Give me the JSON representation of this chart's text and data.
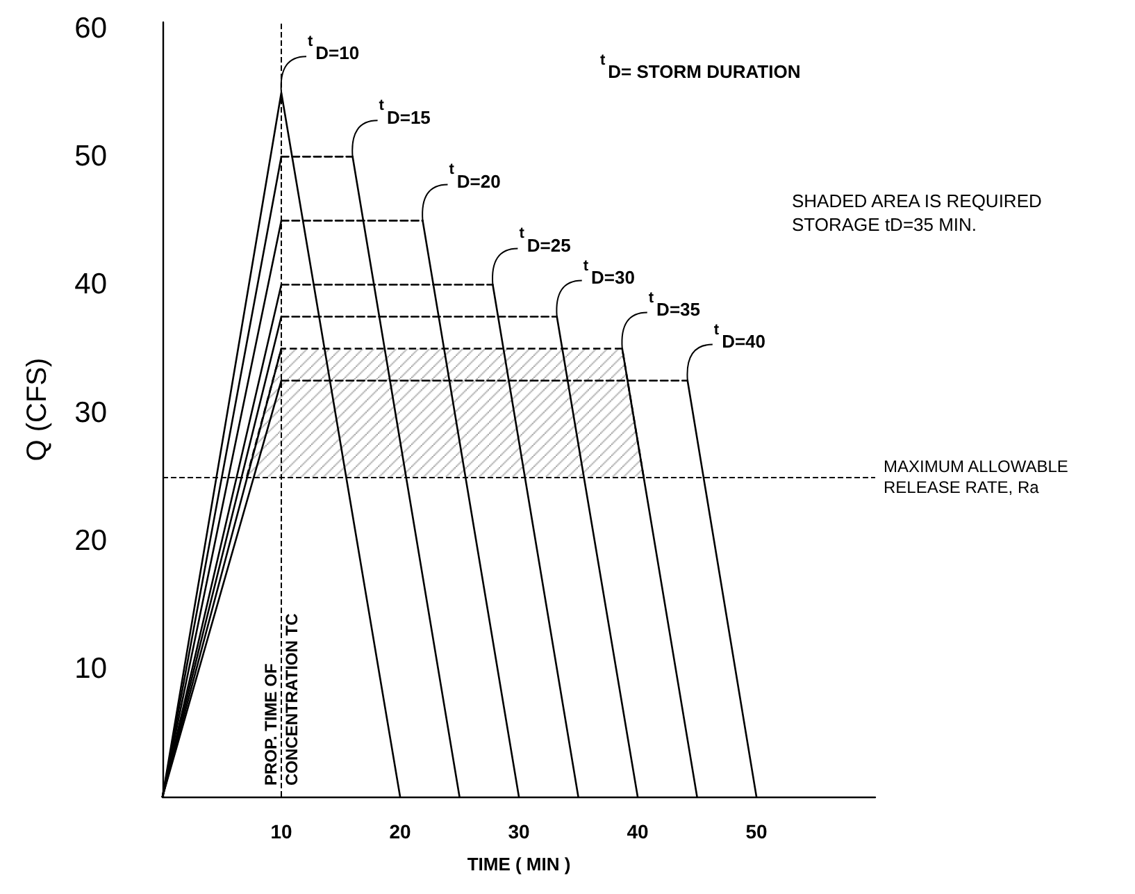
{
  "chart_data": {
    "type": "line",
    "xlabel": "TIME ( MIN )",
    "ylabel": "Q (CFS)",
    "xlim": [
      0,
      60
    ],
    "ylim": [
      0,
      60.5
    ],
    "xticks": [
      10,
      20,
      30,
      40,
      50
    ],
    "yticks": [
      10,
      20,
      30,
      40,
      50,
      60
    ],
    "grid": false,
    "marker": "none",
    "line_style": "solid",
    "series": [
      {
        "color": "#000000",
        "x": [
          0,
          10,
          20
        ],
        "values": [
          0,
          55,
          0
        ]
      },
      {
        "color": "#000000",
        "x": [
          0,
          10
        ],
        "values": [
          0,
          50
        ]
      },
      {
        "color": "#000000",
        "x": [
          16,
          25
        ],
        "values": [
          50,
          0
        ]
      },
      {
        "color": "#000000",
        "x": [
          0,
          10
        ],
        "values": [
          0,
          45
        ]
      },
      {
        "color": "#000000",
        "x": [
          21.9,
          30
        ],
        "values": [
          45,
          0
        ]
      },
      {
        "color": "#000000",
        "x": [
          0,
          10
        ],
        "values": [
          0,
          40
        ]
      },
      {
        "color": "#000000",
        "x": [
          27.8,
          35
        ],
        "values": [
          40,
          0
        ]
      },
      {
        "color": "#000000",
        "x": [
          0,
          10
        ],
        "values": [
          0,
          37.5
        ]
      },
      {
        "color": "#000000",
        "x": [
          33.2,
          40
        ],
        "values": [
          37.5,
          0
        ]
      },
      {
        "color": "#000000",
        "x": [
          0,
          10
        ],
        "values": [
          0,
          35
        ]
      },
      {
        "color": "#000000",
        "x": [
          38.7,
          45
        ],
        "values": [
          35,
          0
        ]
      },
      {
        "color": "#000000",
        "x": [
          0,
          10
        ],
        "values": [
          0,
          32.5
        ]
      },
      {
        "color": "#000000",
        "x": [
          44.2,
          50
        ],
        "values": [
          32.5,
          0
        ]
      },
      {
        "color": "#000000",
        "line_style": "dashed",
        "x": [
          10,
          16
        ],
        "values": [
          50,
          50
        ]
      },
      {
        "color": "#000000",
        "line_style": "dashed",
        "x": [
          10,
          21.9
        ],
        "values": [
          45,
          45
        ]
      },
      {
        "color": "#000000",
        "line_style": "dashed",
        "x": [
          10,
          27.8
        ],
        "values": [
          40,
          40
        ]
      },
      {
        "color": "#000000",
        "line_style": "dashed",
        "x": [
          10,
          33.2
        ],
        "values": [
          37.5,
          37.5
        ]
      },
      {
        "color": "#000000",
        "line_style": "dashed",
        "x": [
          10,
          44.2
        ],
        "values": [
          32.5,
          32.5
        ]
      },
      {
        "type": "area",
        "color": "#000000",
        "line_style": "dashed",
        "x": [
          7.1,
          10,
          38.7,
          40.5
        ],
        "values": [
          25,
          35,
          35,
          25
        ]
      }
    ],
    "ref_lines": [
      {
        "axis": "x",
        "value": 10,
        "label": "PROP. TIME OF\nCONCENTRATION TC",
        "line_style": "dashed",
        "color": "#000000"
      },
      {
        "axis": "y",
        "value": 25,
        "label": "MAXIMUM ALLOWABLE\nRELEASE RATE, Ra",
        "line_style": "dashed",
        "color": "#000000"
      }
    ],
    "annotations": [
      "$^{t}$D= STORM DURATION",
      "SHADED AREA IS REQUIRED\nSTORAGE tD=35 MIN.",
      {
        "text": "$^{t}$D=10",
        "x": 10,
        "y": 55
      },
      {
        "text": "$^{t}$D=15",
        "x": 16,
        "y": 50
      },
      {
        "text": "$^{t}$D=20",
        "x": 21.9,
        "y": 45
      },
      {
        "text": "$^{t}$D=25",
        "x": 27.8,
        "y": 40
      },
      {
        "text": "$^{t}$D=30",
        "x": 33.2,
        "y": 37.5
      },
      {
        "text": "$^{t}$D=35",
        "x": 38.7,
        "y": 35
      },
      {
        "text": "$^{t}$D=40",
        "x": 44.2,
        "y": 32.5
      }
    ]
  }
}
